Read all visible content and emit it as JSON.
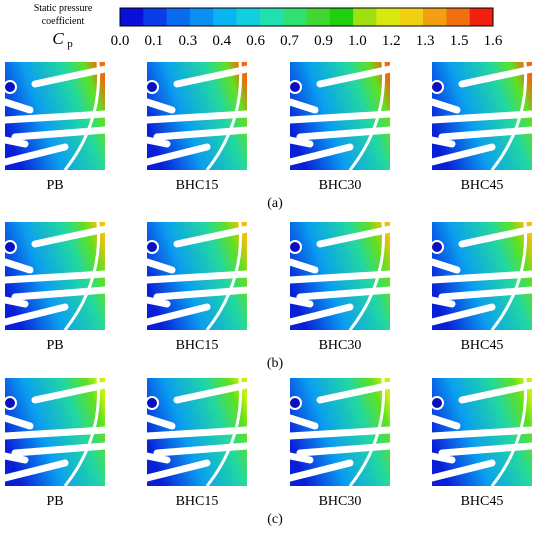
{
  "colorbar": {
    "title_lines": [
      "Static pressure",
      "coefficient"
    ],
    "symbol": "C",
    "symbol_subscript": "p",
    "tick_labels": [
      "0.0",
      "0.1",
      "0.3",
      "0.4",
      "0.6",
      "0.7",
      "0.9",
      "1.0",
      "1.2",
      "1.3",
      "1.5",
      "1.6"
    ]
  },
  "panels": [
    {
      "tag": "(a)",
      "labels": [
        "PB",
        "BHC15",
        "BHC30",
        "BHC45"
      ]
    },
    {
      "tag": "(b)",
      "labels": [
        "PB",
        "BHC15",
        "BHC30",
        "BHC45"
      ]
    },
    {
      "tag": "(c)",
      "labels": [
        "PB",
        "BHC15",
        "BHC30",
        "BHC45"
      ]
    }
  ]
}
